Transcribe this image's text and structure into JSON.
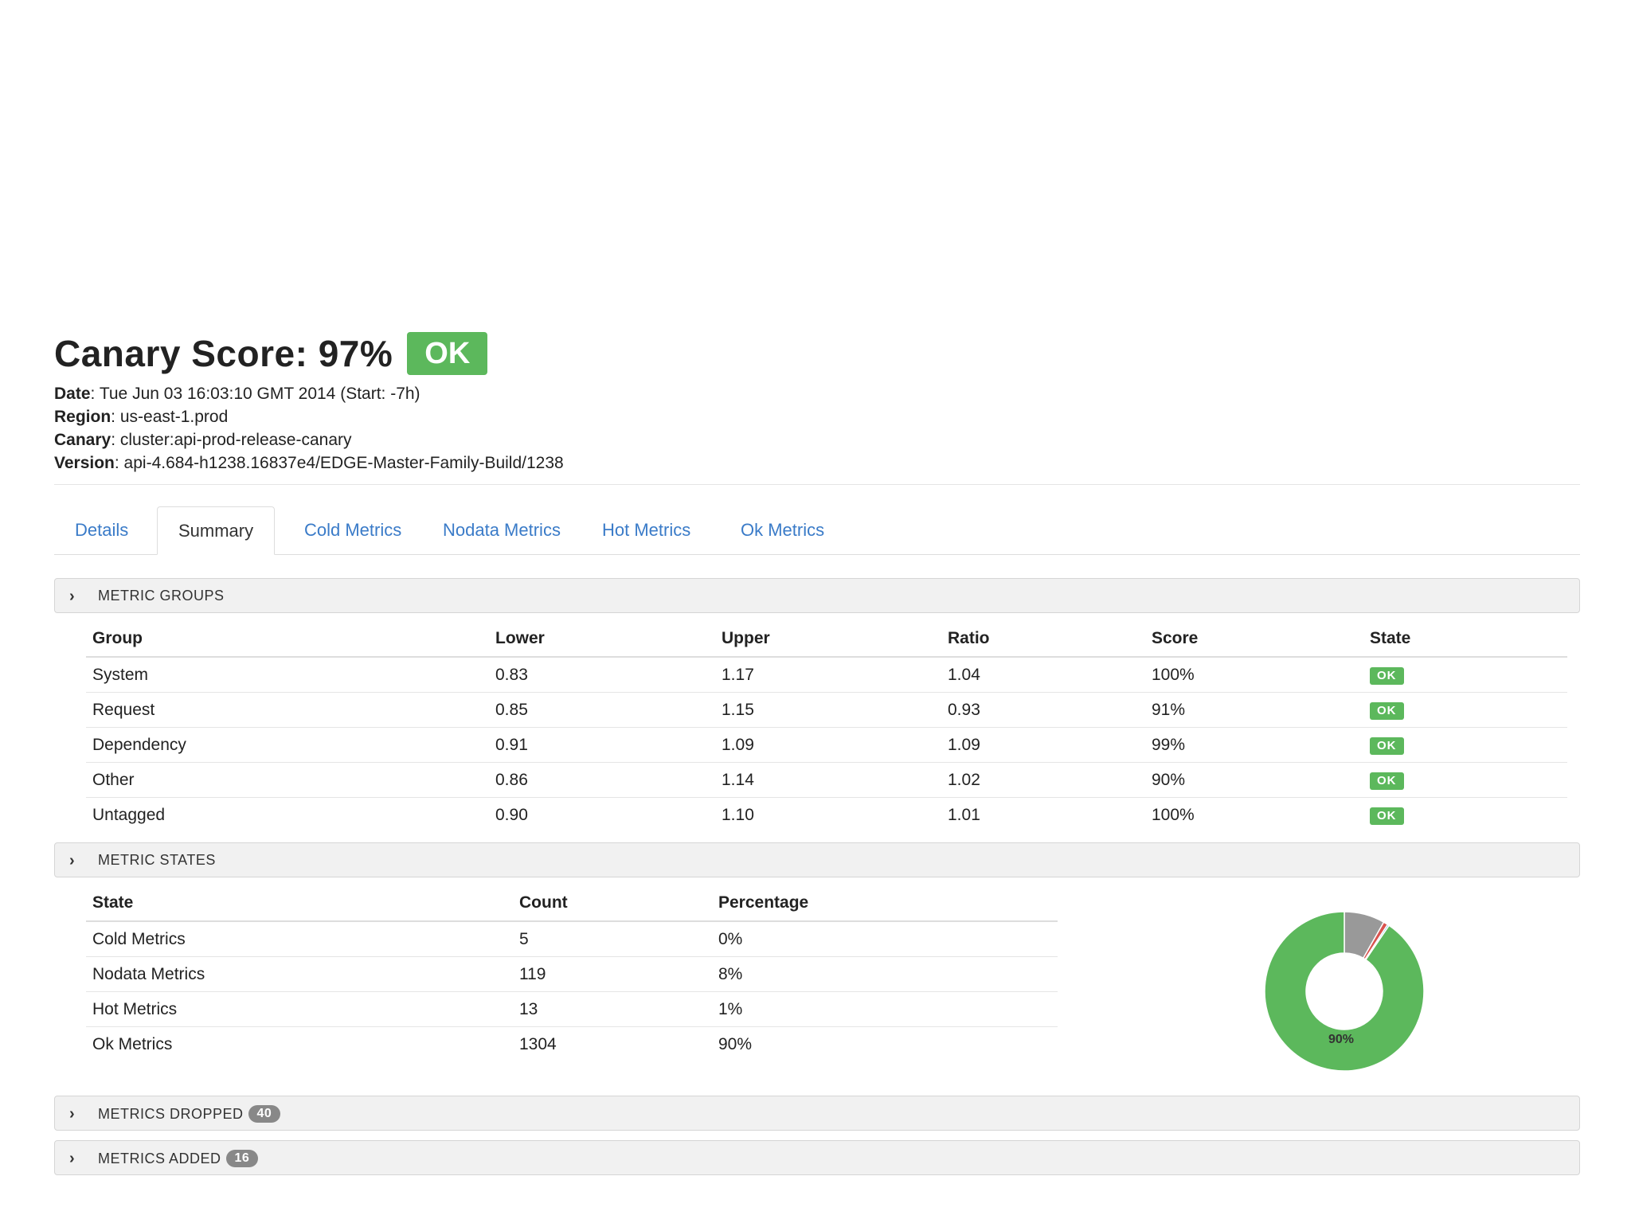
{
  "header": {
    "title": "Canary Score: 97%",
    "status": "OK",
    "meta": [
      {
        "key": "Date",
        "value": " Tue Jun 03 16:03:10 GMT 2014 (Start: -7h)"
      },
      {
        "key": "Region",
        "value": " us-east-1.prod"
      },
      {
        "key": "Canary",
        "value": " cluster:api-prod-release-canary"
      },
      {
        "key": "Version",
        "value": " api-4.684-h1238.16837e4/EDGE-Master-Family-Build/1238"
      }
    ]
  },
  "tabs": [
    {
      "label": "Details"
    },
    {
      "label": "Summary",
      "active": true
    },
    {
      "label": "Cold Metrics"
    },
    {
      "label": "Nodata Metrics"
    },
    {
      "label": "Hot Metrics"
    },
    {
      "label": "Ok Metrics"
    }
  ],
  "metric_groups": {
    "title": "METRIC GROUPS",
    "columns": [
      "Group",
      "Lower",
      "Upper",
      "Ratio",
      "Score",
      "State"
    ],
    "rows": [
      [
        "System",
        "0.83",
        "1.17",
        "1.04",
        "100%",
        "OK"
      ],
      [
        "Request",
        "0.85",
        "1.15",
        "0.93",
        "91%",
        "OK"
      ],
      [
        "Dependency",
        "0.91",
        "1.09",
        "1.09",
        "99%",
        "OK"
      ],
      [
        "Other",
        "0.86",
        "1.14",
        "1.02",
        "90%",
        "OK"
      ],
      [
        "Untagged",
        "0.90",
        "1.10",
        "1.01",
        "100%",
        "OK"
      ]
    ]
  },
  "metric_states": {
    "title": "METRIC STATES",
    "columns": [
      "State",
      "Count",
      "Percentage"
    ],
    "rows": [
      [
        "Cold Metrics",
        "5",
        "0%"
      ],
      [
        "Nodata Metrics",
        "119",
        "8%"
      ],
      [
        "Hot Metrics",
        "13",
        "1%"
      ],
      [
        "Ok Metrics",
        "1304",
        "90%"
      ]
    ],
    "donut_label": "90%",
    "colors": {
      "ok": "#5cb85c",
      "nodata": "#999999",
      "hot": "#d9534f",
      "cold": "#5bc0de"
    }
  },
  "metrics_dropped": {
    "title": "METRICS DROPPED",
    "count": "40"
  },
  "metrics_added": {
    "title": "METRICS ADDED",
    "count": "16"
  },
  "colors": {
    "accent": "#3a7bc8",
    "ok": "#5cb85c"
  }
}
